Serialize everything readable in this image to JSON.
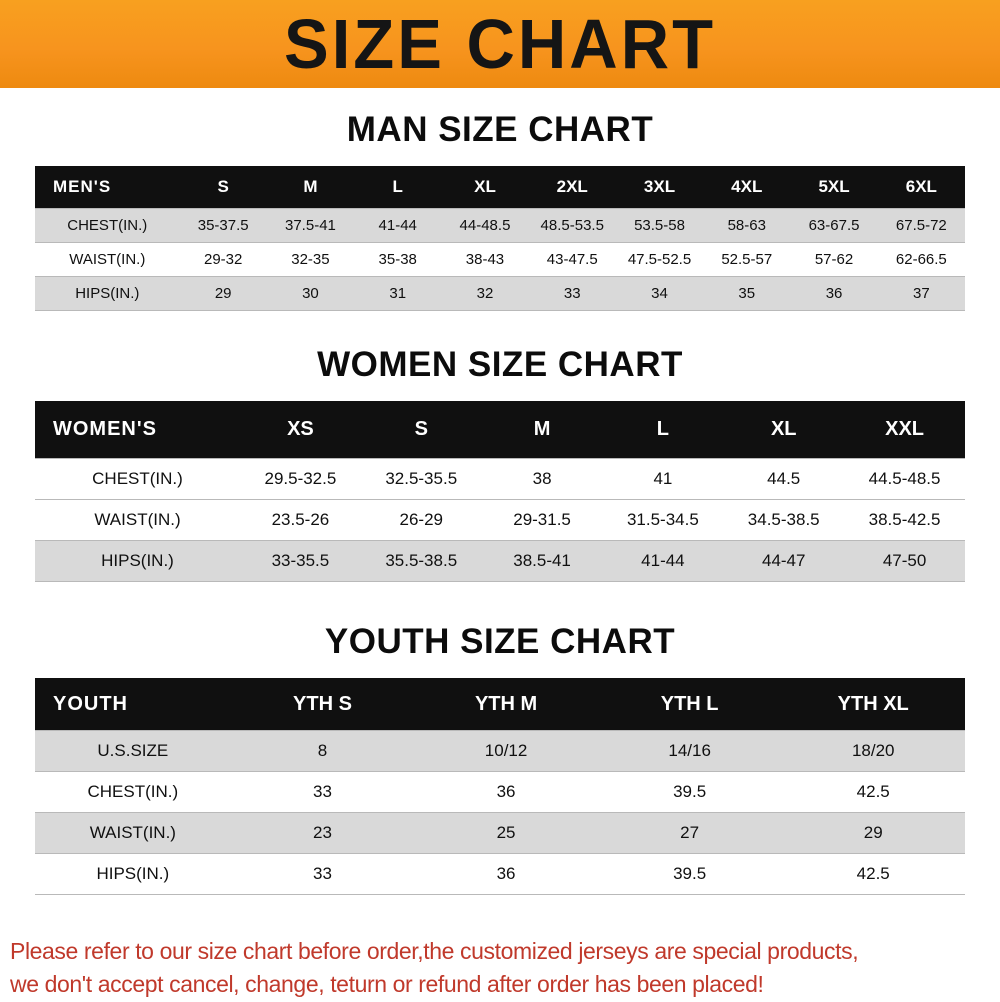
{
  "banner": {
    "title": "SIZE CHART",
    "bg_color": "#f7941e",
    "text_color": "#151515"
  },
  "colors": {
    "header_bg": "#101010",
    "header_text": "#ffffff",
    "shaded_row": "#d9d9d9",
    "footer_text": "#c0392b"
  },
  "sections": [
    {
      "heading": "MAN SIZE CHART",
      "corner_label": "MEN'S",
      "columns": [
        "S",
        "M",
        "L",
        "XL",
        "2XL",
        "3XL",
        "4XL",
        "5XL",
        "6XL"
      ],
      "rows": [
        {
          "label": "CHEST(IN.)",
          "shaded": true,
          "values": [
            "35-37.5",
            "37.5-41",
            "41-44",
            "44-48.5",
            "48.5-53.5",
            "53.5-58",
            "58-63",
            "63-67.5",
            "67.5-72"
          ]
        },
        {
          "label": "WAIST(IN.)",
          "shaded": false,
          "values": [
            "29-32",
            "32-35",
            "35-38",
            "38-43",
            "43-47.5",
            "47.5-52.5",
            "52.5-57",
            "57-62",
            "62-66.5"
          ]
        },
        {
          "label": "HIPS(IN.)",
          "shaded": true,
          "values": [
            "29",
            "30",
            "31",
            "32",
            "33",
            "34",
            "35",
            "36",
            "37"
          ]
        }
      ]
    },
    {
      "heading": "WOMEN SIZE CHART",
      "corner_label": "WOMEN'S",
      "columns": [
        "XS",
        "S",
        "M",
        "L",
        "XL",
        "XXL"
      ],
      "rows": [
        {
          "label": "CHEST(IN.)",
          "shaded": false,
          "values": [
            "29.5-32.5",
            "32.5-35.5",
            "38",
            "41",
            "44.5",
            "44.5-48.5"
          ]
        },
        {
          "label": "WAIST(IN.)",
          "shaded": false,
          "values": [
            "23.5-26",
            "26-29",
            "29-31.5",
            "31.5-34.5",
            "34.5-38.5",
            "38.5-42.5"
          ]
        },
        {
          "label": "HIPS(IN.)",
          "shaded": true,
          "values": [
            "33-35.5",
            "35.5-38.5",
            "38.5-41",
            "41-44",
            "44-47",
            "47-50"
          ]
        }
      ]
    },
    {
      "heading": "YOUTH SIZE CHART",
      "corner_label": "YOUTH",
      "columns": [
        "YTH S",
        "YTH M",
        "YTH L",
        "YTH XL"
      ],
      "rows": [
        {
          "label": "U.S.SIZE",
          "shaded": true,
          "values": [
            "8",
            "10/12",
            "14/16",
            "18/20"
          ]
        },
        {
          "label": "CHEST(IN.)",
          "shaded": false,
          "values": [
            "33",
            "36",
            "39.5",
            "42.5"
          ]
        },
        {
          "label": "WAIST(IN.)",
          "shaded": true,
          "values": [
            "23",
            "25",
            "27",
            "29"
          ]
        },
        {
          "label": "HIPS(IN.)",
          "shaded": false,
          "values": [
            "33",
            "36",
            "39.5",
            "42.5"
          ]
        }
      ]
    }
  ],
  "footer": {
    "lines": [
      "Please refer to our size chart before order,the customized jerseys are special products,",
      "we don't accept cancel, change, teturn or refund after order has been placed!"
    ]
  }
}
